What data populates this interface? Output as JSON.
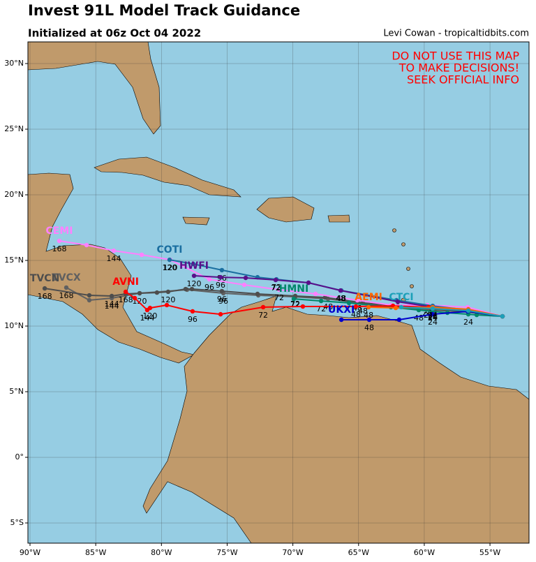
{
  "chart_data": {
    "type": "track-map",
    "title": "Invest 91L Model Track Guidance",
    "subtitle": "Initialized at 06z Oct 04 2022",
    "credit": "Levi Cowan - tropicaltidbits.com",
    "warning": [
      "DO NOT USE THIS MAP",
      "TO MAKE DECISIONS!",
      "SEEK OFFICIAL INFO"
    ],
    "xlim": [
      -90.16,
      -52.03
    ],
    "ylim": [
      -6.54,
      31.65
    ],
    "xticks": [
      {
        "value": -90,
        "label": "90°W"
      },
      {
        "value": -85,
        "label": "85°W"
      },
      {
        "value": -80,
        "label": "80°W"
      },
      {
        "value": -75,
        "label": "75°W"
      },
      {
        "value": -70,
        "label": "70°W"
      },
      {
        "value": -65,
        "label": "65°W"
      },
      {
        "value": -60,
        "label": "60°W"
      },
      {
        "value": -55,
        "label": "55°W"
      }
    ],
    "yticks": [
      {
        "value": -5,
        "label": "5°S"
      },
      {
        "value": 0,
        "label": "0°"
      },
      {
        "value": 5,
        "label": "5°N"
      },
      {
        "value": 10,
        "label": "10°N"
      },
      {
        "value": 15,
        "label": "15°N"
      },
      {
        "value": 20,
        "label": "20°N"
      },
      {
        "value": 25,
        "label": "25°N"
      },
      {
        "value": 30,
        "label": "30°N"
      }
    ],
    "grid": true,
    "series": [
      {
        "name": "TVCX",
        "color": "#606060",
        "x": [
          -54.05,
          -56.65,
          -59.36,
          -62.54,
          -67.32,
          -69.82,
          -72.63,
          -75.29,
          -78.05,
          -81.66,
          -83.78,
          -85.49,
          -87.24
        ],
        "values": [
          10.74,
          11.06,
          11.22,
          11.44,
          12.07,
          12.23,
          12.34,
          12.5,
          12.77,
          12.5,
          12.13,
          11.97,
          12.93
        ],
        "hours": [
          null,
          null,
          24,
          null,
          48,
          72,
          null,
          96,
          null,
          120,
          144,
          null,
          168
        ]
      },
      {
        "name": "TVCN",
        "color": "#4d4d4d",
        "x": [
          -54.05,
          -56.65,
          -59.36,
          -62.01,
          -64.67,
          -67.54,
          -69.82,
          -72.69,
          -75.4,
          -77.68,
          -78.16,
          -79.49,
          -80.34,
          -81.66,
          -82.72,
          -83.78,
          -85.49,
          -88.88
        ],
        "values": [
          10.74,
          11.12,
          11.28,
          11.54,
          11.76,
          12.18,
          12.29,
          12.45,
          12.66,
          12.82,
          12.82,
          12.61,
          12.55,
          12.5,
          12.45,
          12.29,
          12.34,
          12.87
        ],
        "hours": [
          null,
          null,
          24,
          null,
          48,
          null,
          72,
          null,
          96,
          null,
          null,
          120,
          null,
          null,
          null,
          144,
          null,
          168
        ]
      },
      {
        "name": "CEMI",
        "color": "#ff80ff",
        "x": [
          -54.05,
          -56.7,
          -59.78,
          -62.54,
          -65.09,
          -68.28,
          -71.04,
          -73.7,
          -76.35,
          -79.33,
          -81.5,
          -83.63,
          -85.7,
          -87.77
        ],
        "values": [
          10.74,
          11.44,
          11.6,
          11.6,
          11.97,
          12.45,
          12.77,
          13.14,
          13.56,
          15.05,
          15.43,
          15.74,
          16.17,
          16.49
        ],
        "hours": [
          null,
          null,
          24,
          null,
          48,
          null,
          72,
          null,
          96,
          120,
          null,
          144,
          null,
          168
        ]
      },
      {
        "name": "COTI",
        "color": "#1a6ea0",
        "x": [
          -54.05,
          -56.65,
          -59.36,
          -62.12,
          -66.31,
          -68.81,
          -71.25,
          -72.69,
          -75.4,
          -77.57,
          -79.38
        ],
        "values": [
          10.74,
          11.22,
          11.54,
          11.97,
          12.71,
          13.3,
          13.56,
          13.72,
          14.26,
          14.73,
          15.05
        ],
        "hours": [
          null,
          null,
          24,
          null,
          48,
          null,
          72,
          null,
          96,
          null,
          120
        ]
      },
      {
        "name": "HWFI",
        "color": "#5a0f8a",
        "x": [
          -54.05,
          -56.65,
          -59.36,
          -62.01,
          -66.37,
          -68.81,
          -71.31,
          -73.59,
          -75.5,
          -77.52
        ],
        "values": [
          10.74,
          11.17,
          11.44,
          11.86,
          12.71,
          13.3,
          13.51,
          13.67,
          13.72,
          13.83
        ],
        "hours": [
          null,
          null,
          24,
          null,
          48,
          null,
          72,
          null,
          96,
          120
        ]
      },
      {
        "name": "HMNI",
        "color": "#00876a",
        "x": [
          -54.05,
          -56.01,
          -56.65,
          -58.24,
          -60.42,
          -62.54,
          -65.73,
          -67.85,
          -69.93
        ],
        "values": [
          10.74,
          10.85,
          10.9,
          11.01,
          11.22,
          11.44,
          11.76,
          11.91,
          12.07
        ],
        "hours": [
          null,
          null,
          24,
          null,
          48,
          null,
          null,
          72,
          null
        ]
      },
      {
        "name": "AVNI",
        "color": "#ff0000",
        "x": [
          -54.05,
          -56.65,
          -59.68,
          -62.38,
          -65.2,
          -69.24,
          -72.26,
          -75.5,
          -77.63,
          -79.59,
          -80.87,
          -81.08,
          -82.03,
          -82.72
        ],
        "values": [
          10.74,
          11.22,
          11.44,
          11.54,
          11.49,
          11.49,
          11.44,
          10.9,
          11.12,
          11.6,
          11.38,
          11.22,
          12.13,
          12.61
        ],
        "hours": [
          null,
          null,
          24,
          null,
          48,
          null,
          72,
          null,
          96,
          null,
          120,
          144,
          null,
          168
        ]
      },
      {
        "name": "UKXI",
        "color": "#0000cc",
        "x": [
          -54.05,
          -56.7,
          -59.36,
          -61.91,
          -64.19,
          -66.31
        ],
        "values": [
          10.74,
          11.12,
          10.9,
          10.48,
          10.48,
          10.48
        ],
        "hours": [
          null,
          null,
          24,
          null,
          48,
          null
        ]
      },
      {
        "name": "AEMI",
        "color": "#ff6600",
        "x": [
          -54.05,
          -56.65,
          -59.36,
          -62.17,
          -64.24
        ],
        "values": [
          10.74,
          11.28,
          11.44,
          11.38,
          11.44
        ],
        "hours": [
          null,
          null,
          24,
          null,
          48
        ]
      },
      {
        "name": "CTCI",
        "color": "#1ca0b8",
        "x": [
          -54.05,
          -56.65,
          -59.36,
          -61.75
        ],
        "values": [
          10.74,
          11.17,
          11.33,
          11.44
        ],
        "hours": [
          null,
          null,
          24,
          null
        ]
      }
    ]
  }
}
